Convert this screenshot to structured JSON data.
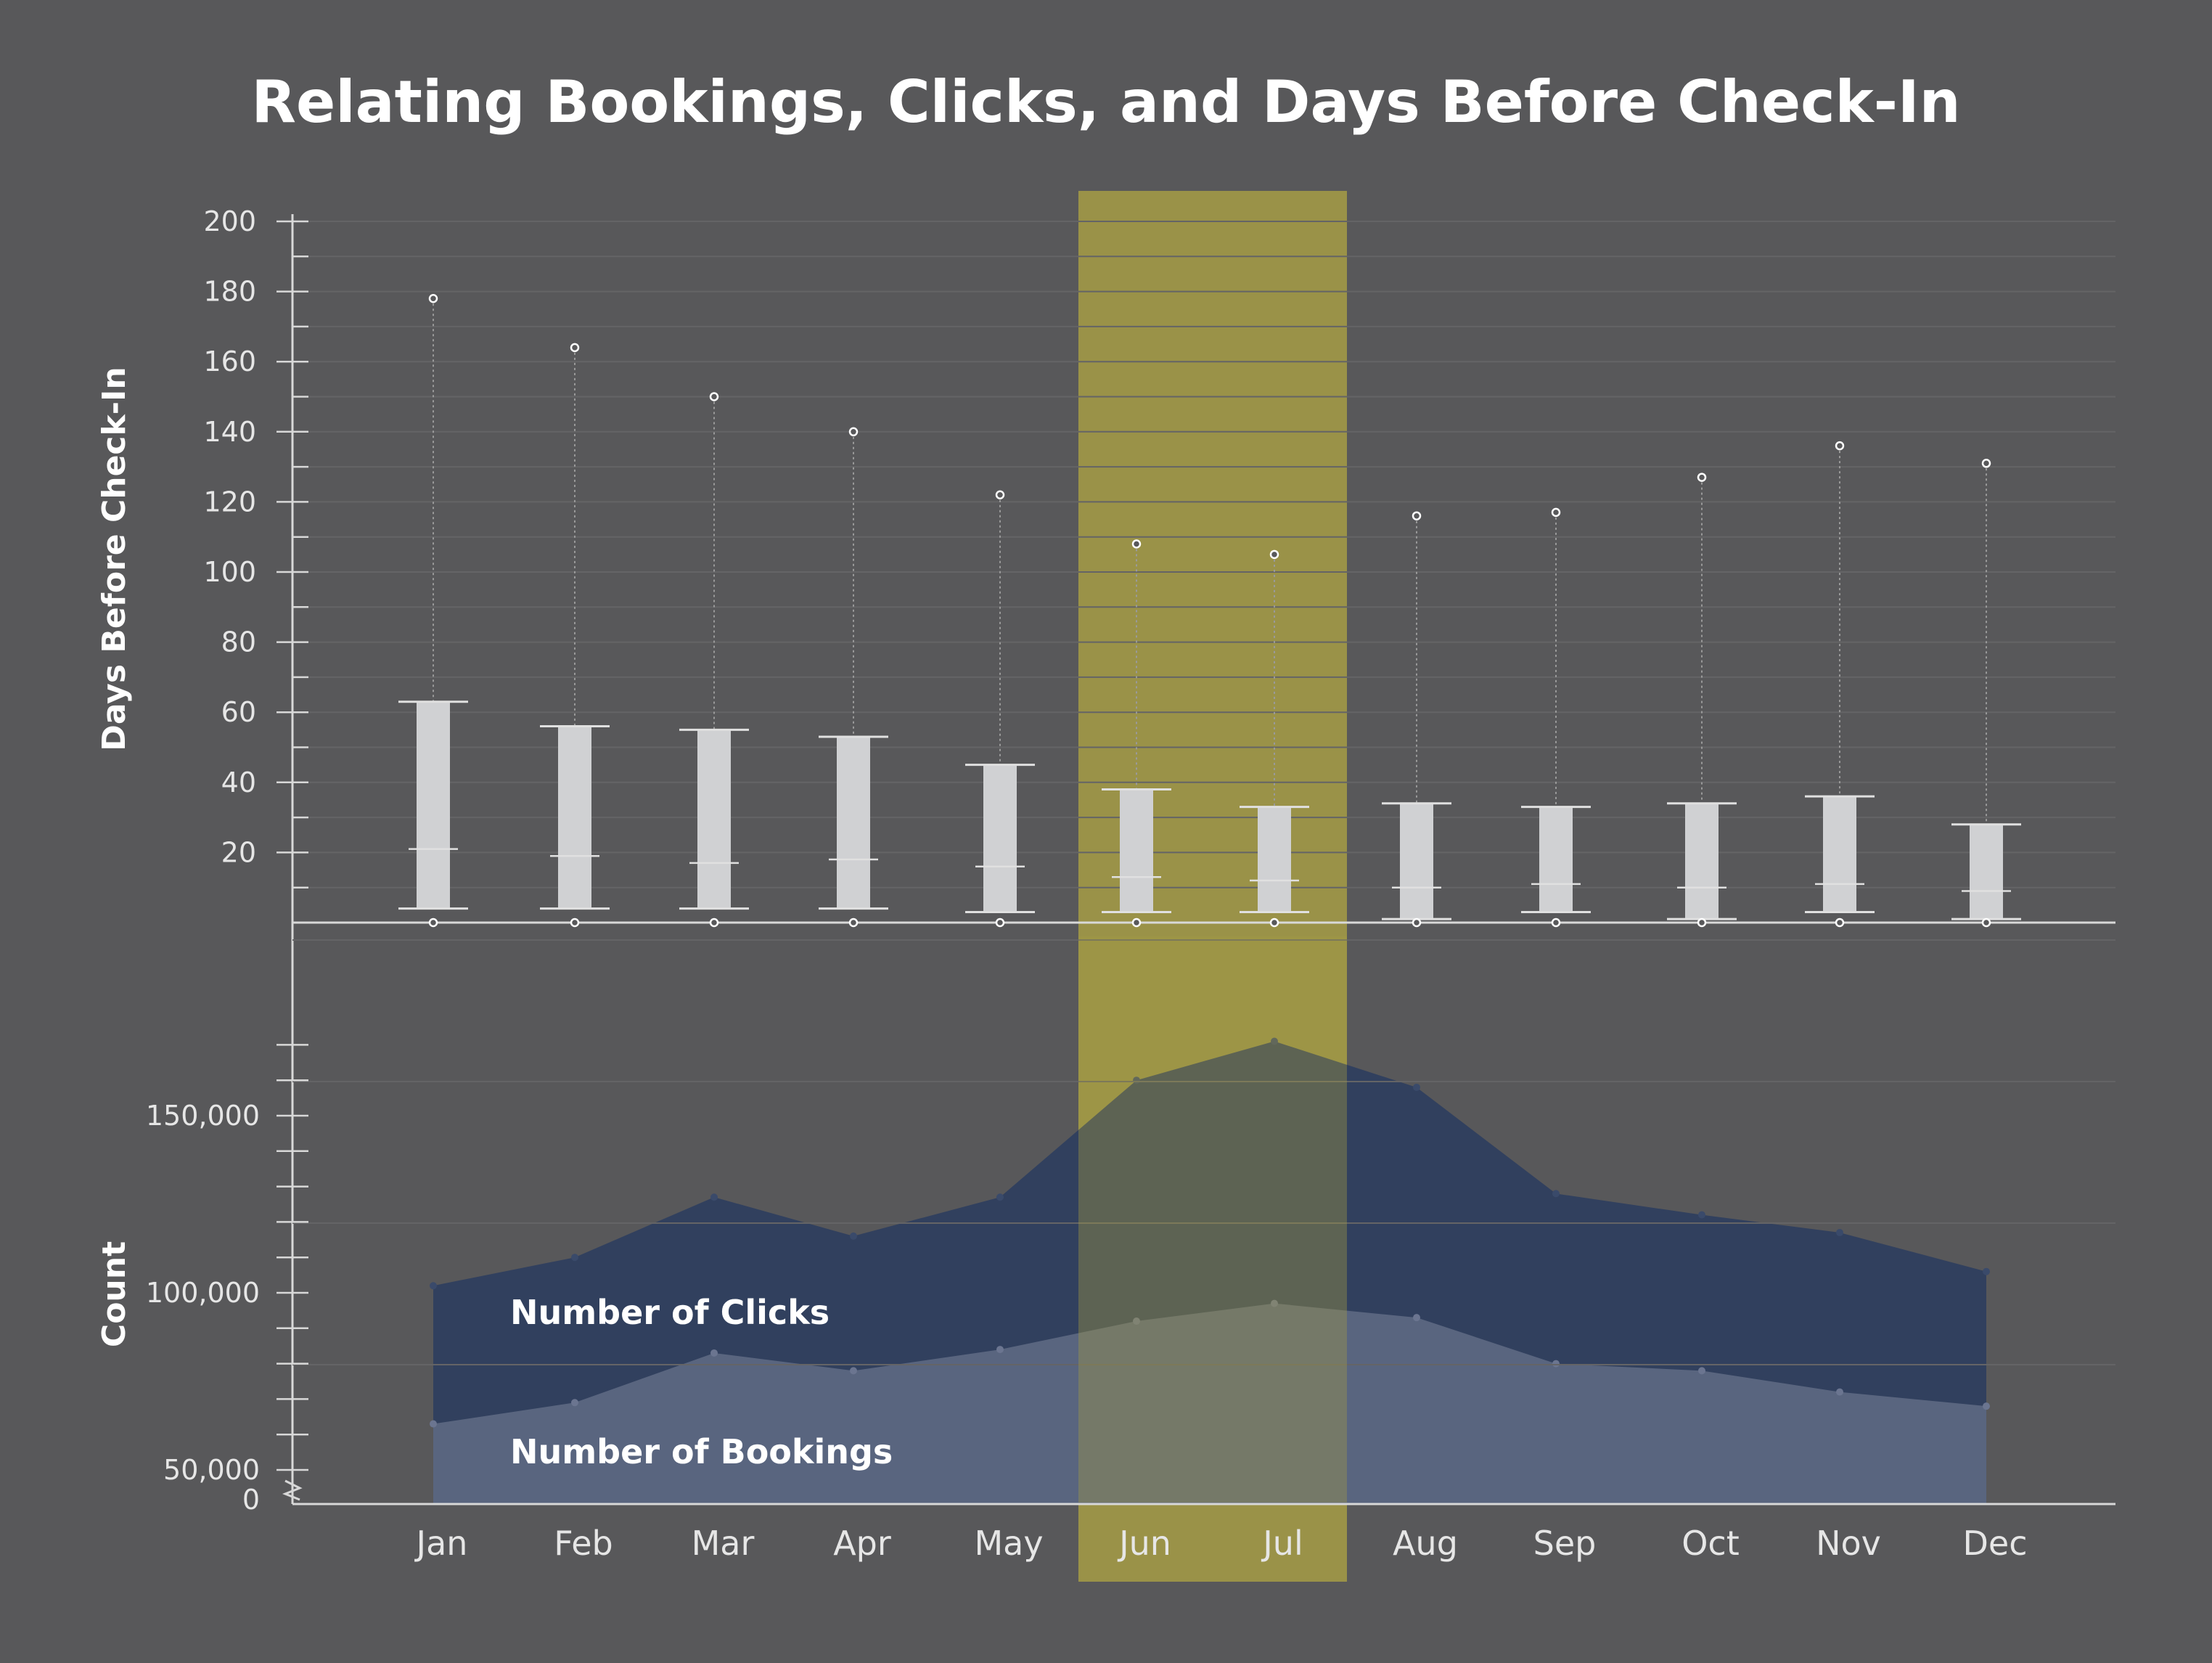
{
  "chart_data": [
    {
      "type": "box",
      "title": "Relating Bookings, Clicks, and Days Before Check-In",
      "ylabel": "Days Before Check-In",
      "ylim": [
        0,
        200
      ],
      "y_ticks": [
        "200",
        "180",
        "160",
        "140",
        "120",
        "100",
        "80",
        "60",
        "40",
        "20"
      ],
      "y_tick_values": [
        200,
        180,
        160,
        140,
        120,
        100,
        80,
        60,
        40,
        20
      ],
      "categories": [
        "Jan",
        "Feb",
        "Mar",
        "Apr",
        "May",
        "Jun",
        "Jul",
        "Aug",
        "Sep",
        "Oct",
        "Nov",
        "Dec"
      ],
      "highlight": [
        "Jun",
        "Jul"
      ],
      "boxes": [
        {
          "month": "Jan",
          "min": 0,
          "lower": 4,
          "median": 21,
          "upper": 63,
          "max": 178
        },
        {
          "month": "Feb",
          "min": 0,
          "lower": 4,
          "median": 19,
          "upper": 56,
          "max": 164
        },
        {
          "month": "Mar",
          "min": 0,
          "lower": 4,
          "median": 17,
          "upper": 55,
          "max": 150
        },
        {
          "month": "Apr",
          "min": 0,
          "lower": 4,
          "median": 18,
          "upper": 53,
          "max": 140
        },
        {
          "month": "May",
          "min": 0,
          "lower": 3,
          "median": 16,
          "upper": 45,
          "max": 122
        },
        {
          "month": "Jun",
          "min": 0,
          "lower": 3,
          "median": 13,
          "upper": 38,
          "max": 108
        },
        {
          "month": "Jul",
          "min": 0,
          "lower": 3,
          "median": 12,
          "upper": 33,
          "max": 105
        },
        {
          "month": "Aug",
          "min": 0,
          "lower": 1,
          "median": 10,
          "upper": 34,
          "max": 116
        },
        {
          "month": "Sep",
          "min": 0,
          "lower": 3,
          "median": 11,
          "upper": 33,
          "max": 117
        },
        {
          "month": "Oct",
          "min": 0,
          "lower": 1,
          "median": 10,
          "upper": 34,
          "max": 127
        },
        {
          "month": "Nov",
          "min": 0,
          "lower": 3,
          "median": 11,
          "upper": 36,
          "max": 136
        },
        {
          "month": "Dec",
          "min": 0,
          "lower": 1,
          "median": 9,
          "upper": 28,
          "max": 131
        }
      ],
      "colors": {
        "box": "#d0d1d3",
        "whisker": "#b8b8b8",
        "highlight": "#a39a45"
      }
    },
    {
      "type": "area",
      "ylabel": "Count",
      "y_axis_break": true,
      "y_ticks": [
        "150,000",
        "100,000",
        "50,000",
        "0"
      ],
      "y_tick_values": [
        150000,
        100000,
        50000,
        0
      ],
      "x": [
        "Jan",
        "Feb",
        "Mar",
        "Apr",
        "May",
        "Jun",
        "Jul",
        "Aug",
        "Sep",
        "Oct",
        "Nov",
        "Dec"
      ],
      "series": [
        {
          "name": "Number of Clicks",
          "color": "#2f3f5e",
          "values": [
            102000,
            110000,
            127000,
            116000,
            127000,
            160000,
            171000,
            158000,
            128000,
            122000,
            117000,
            106000
          ]
        },
        {
          "name": "Number of Bookings",
          "color": "#5b6680",
          "values": [
            63000,
            69000,
            83000,
            78000,
            84000,
            92000,
            97000,
            93000,
            80000,
            78000,
            72000,
            68000
          ]
        }
      ]
    }
  ]
}
